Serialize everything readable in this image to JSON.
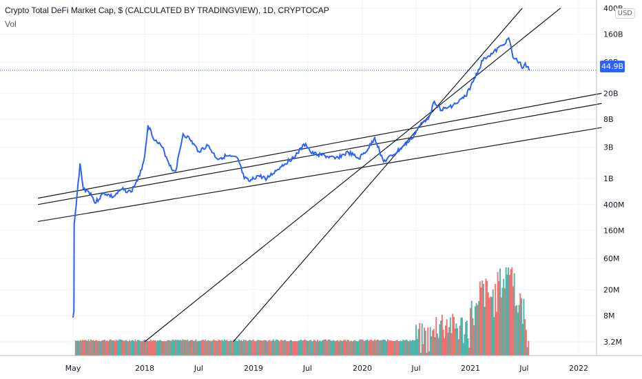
{
  "legend": {
    "title": "Crypto Total DeFi Market Cap, $ (CALCULATED BY TRADINGVIEW), 1D, CRYPTOCAP",
    "vol_label": "Vol"
  },
  "currency_label": "USD",
  "last_price_label": "44.9B",
  "colors": {
    "price_line": "#2962ff",
    "trend_lines": "#131722",
    "vol_up": "#26a69a",
    "vol_down": "#ef5350",
    "grid": "#f0f3fa",
    "axis_border": "#b2b5be"
  },
  "chart_data": {
    "type": "line",
    "title": "Crypto Total DeFi Market Cap, $ (CALCULATED BY TRADINGVIEW), 1D, CRYPTOCAP",
    "scale": "log",
    "ylim": [
      "3.2M",
      "400B"
    ],
    "y_ticks": [
      "400B",
      "160B",
      "60B",
      "20B",
      "8B",
      "3B",
      "1B",
      "400M",
      "160M",
      "60M",
      "20M",
      "8M",
      "3.2M"
    ],
    "x_ticks": [
      "May",
      "2018",
      "Jul",
      "2019",
      "Jul",
      "2020",
      "Jul",
      "2021",
      "Jul",
      "2022"
    ],
    "grid": true,
    "last_value": "44.9B",
    "series": [
      {
        "type": "line",
        "points": [
          [
            "2017-05-01",
            7500000
          ],
          [
            "2017-05-04",
            9500000
          ],
          [
            "2017-05-05",
            200000000
          ],
          [
            "2017-05-12",
            400000000
          ],
          [
            "2017-05-25",
            1700000000
          ],
          [
            "2017-06-05",
            700000000
          ],
          [
            "2017-07-01",
            600000000
          ],
          [
            "2017-07-15",
            420000000
          ],
          [
            "2017-08-15",
            600000000
          ],
          [
            "2017-09-15",
            520000000
          ],
          [
            "2017-10-15",
            680000000
          ],
          [
            "2017-11-15",
            620000000
          ],
          [
            "2017-12-15",
            1100000000
          ],
          [
            "2018-01-01",
            2200000000
          ],
          [
            "2018-01-12",
            6500000000
          ],
          [
            "2018-02-05",
            3800000000
          ],
          [
            "2018-03-01",
            3000000000
          ],
          [
            "2018-04-01",
            1400000000
          ],
          [
            "2018-04-15",
            1300000000
          ],
          [
            "2018-05-10",
            4800000000
          ],
          [
            "2018-06-01",
            4000000000
          ],
          [
            "2018-07-01",
            2600000000
          ],
          [
            "2018-08-01",
            3200000000
          ],
          [
            "2018-09-01",
            2000000000
          ],
          [
            "2018-10-01",
            2200000000
          ],
          [
            "2018-11-10",
            2000000000
          ],
          [
            "2018-12-01",
            1000000000
          ],
          [
            "2018-12-20",
            900000000
          ],
          [
            "2019-01-15",
            1100000000
          ],
          [
            "2019-02-15",
            1000000000
          ],
          [
            "2019-04-01",
            1500000000
          ],
          [
            "2019-05-15",
            2100000000
          ],
          [
            "2019-06-25",
            3400000000
          ],
          [
            "2019-07-15",
            2400000000
          ],
          [
            "2019-08-15",
            2300000000
          ],
          [
            "2019-10-01",
            2000000000
          ],
          [
            "2019-11-15",
            2500000000
          ],
          [
            "2019-12-20",
            2000000000
          ],
          [
            "2020-01-20",
            2800000000
          ],
          [
            "2020-02-12",
            4200000000
          ],
          [
            "2020-03-13",
            1800000000
          ],
          [
            "2020-04-15",
            2300000000
          ],
          [
            "2020-05-15",
            3000000000
          ],
          [
            "2020-06-15",
            4000000000
          ],
          [
            "2020-07-15",
            6500000000
          ],
          [
            "2020-08-15",
            9000000000
          ],
          [
            "2020-09-01",
            15000000000
          ],
          [
            "2020-09-25",
            11000000000
          ],
          [
            "2020-10-15",
            12000000000
          ],
          [
            "2020-11-15",
            14000000000
          ],
          [
            "2020-12-15",
            18000000000
          ],
          [
            "2021-01-10",
            30000000000
          ],
          [
            "2021-02-15",
            70000000000
          ],
          [
            "2021-03-15",
            80000000000
          ],
          [
            "2021-04-20",
            110000000000
          ],
          [
            "2021-05-10",
            140000000000
          ],
          [
            "2021-05-25",
            70000000000
          ],
          [
            "2021-06-15",
            60000000000
          ],
          [
            "2021-06-25",
            48000000000
          ],
          [
            "2021-07-05",
            58000000000
          ],
          [
            "2021-07-18",
            44900000000
          ]
        ]
      },
      {
        "type": "bar",
        "name": "Vol",
        "description_values_by_period": [
          [
            "2020-07",
            5000000
          ],
          [
            "2020-09",
            8000000
          ],
          [
            "2020-11",
            7000000
          ],
          [
            "2021-01",
            12000000
          ],
          [
            "2021-02",
            25000000
          ],
          [
            "2021-03",
            20000000
          ],
          [
            "2021-04",
            35000000
          ],
          [
            "2021-05",
            60000000
          ],
          [
            "2021-06",
            15000000
          ],
          [
            "2021-07",
            6000000
          ]
        ]
      }
    ],
    "trend_lines": [
      {
        "from": [
          "2017-01-01",
          500000000
        ],
        "to": [
          "2022-03-20",
          20000000000
        ]
      },
      {
        "from": [
          "2017-01-01",
          400000000
        ],
        "to": [
          "2022-03-20",
          14000000000
        ]
      },
      {
        "from": [
          "2017-01-01",
          220000000
        ],
        "to": [
          "2022-03-20",
          6000000000
        ]
      },
      {
        "from": [
          "2018-01-01",
          3200000
        ],
        "to": [
          "2021-11-01",
          400000000000
        ]
      },
      {
        "from": [
          "2018-10-25",
          3200000
        ],
        "to": [
          "2021-06-25",
          400000000000
        ]
      }
    ]
  }
}
